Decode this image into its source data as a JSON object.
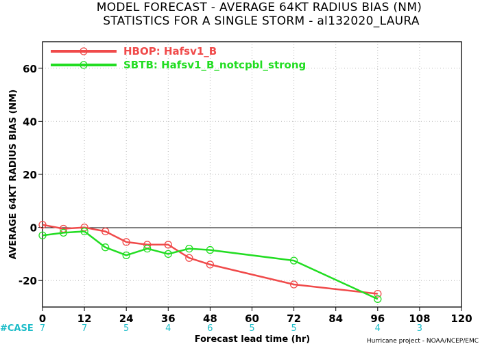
{
  "chart_data": {
    "type": "line",
    "title": "MODEL FORECAST - AVERAGE 64KT RADIUS BIAS (NM)",
    "subtitle": "STATISTICS FOR A SINGLE STORM - al132020_LAURA",
    "xlabel": "Forecast lead time (hr)",
    "ylabel": "AVERAGE 64KT RADIUS BIAS (NM)",
    "xlim": [
      0,
      120
    ],
    "ylim": [
      -30,
      70
    ],
    "xticks": [
      0,
      12,
      24,
      36,
      48,
      60,
      72,
      84,
      96,
      108,
      120
    ],
    "yticks": [
      -20,
      0,
      20,
      40,
      60
    ],
    "grid": true,
    "reference_line_y": 0,
    "legend_position": "top-left",
    "series": [
      {
        "name": "HBOP: Hafsv1_B",
        "color": "#f04a4a",
        "x": [
          0,
          6,
          12,
          18,
          24,
          30,
          36,
          42,
          48,
          72,
          96
        ],
        "y": [
          1,
          -0.5,
          0,
          -1.5,
          -5.5,
          -6.5,
          -6.5,
          -11.5,
          -14,
          -21.5,
          -25
        ]
      },
      {
        "name": "SBTB: Hafsv1_B_notcpbl_strong",
        "color": "#22dd22",
        "x": [
          0,
          6,
          12,
          18,
          24,
          30,
          36,
          42,
          48,
          72,
          96
        ],
        "y": [
          -3,
          -2,
          -1.5,
          -7.5,
          -10.5,
          -8,
          -10,
          -8,
          -8.5,
          -12.5,
          -27
        ]
      }
    ],
    "case_counts": {
      "label": "#CASE",
      "color": "#1bbcc8",
      "x": [
        0,
        12,
        24,
        36,
        48,
        60,
        72,
        96,
        108
      ],
      "values": [
        "7",
        "7",
        "5",
        "4",
        "6",
        "5",
        "5",
        "4",
        "3"
      ]
    }
  },
  "credit": "Hurricane project - NOAA/NCEP/EMC"
}
